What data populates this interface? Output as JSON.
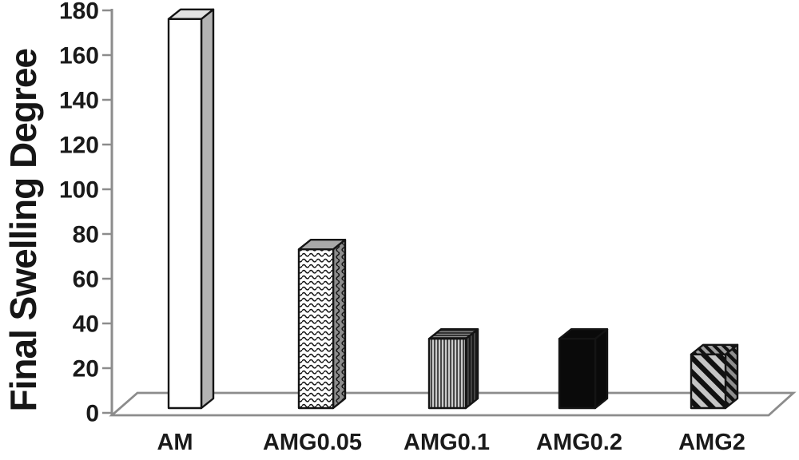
{
  "chart_data": {
    "type": "bar",
    "title": "",
    "categories": [
      "AM",
      "AMG0.05",
      "AMG0.1",
      "AMG0.2",
      "AMG2"
    ],
    "values": [
      174,
      71,
      31,
      31,
      24
    ],
    "xlabel": "",
    "ylabel": "Final Swelling Degree",
    "ylim": [
      0,
      180
    ],
    "yticks": [
      0,
      20,
      40,
      60,
      80,
      100,
      120,
      140,
      160,
      180
    ],
    "grid": false,
    "legend": false,
    "style_3d": true,
    "bar_fill_styles": [
      "plain-white",
      "horizontal-waves",
      "vertical-stripes",
      "solid-black",
      "diagonal-stripes"
    ],
    "colors": {
      "axis": "#8c8c8c",
      "outline": "#141414",
      "text": "#1a1a1a",
      "background": "#ffffff"
    }
  }
}
